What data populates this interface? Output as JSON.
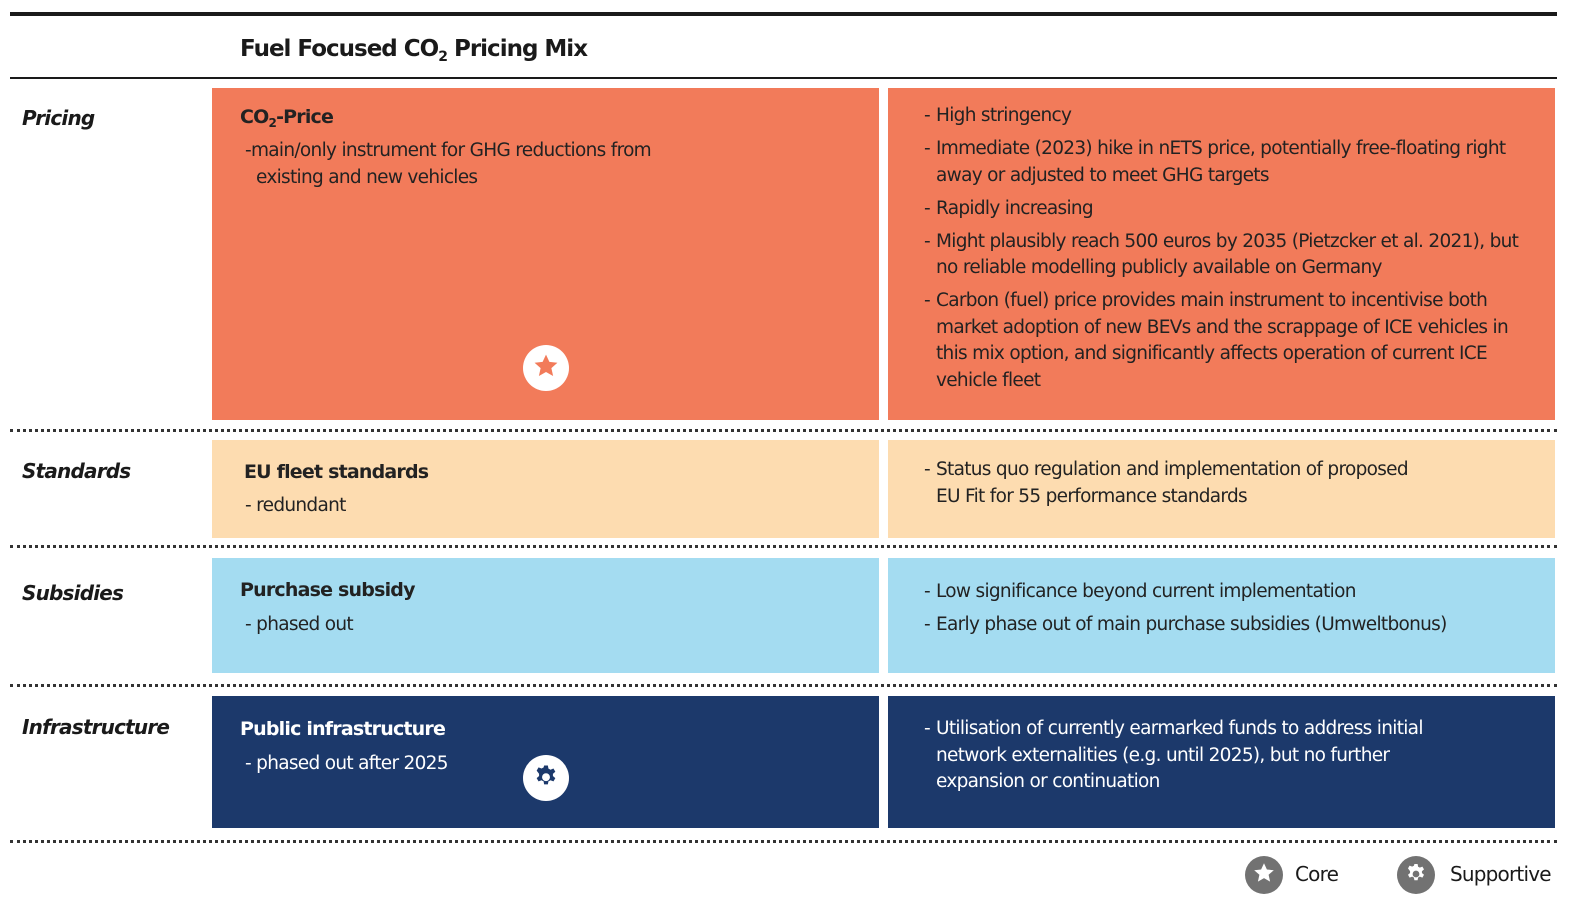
{
  "title": {
    "prefix": "Fuel Focused CO",
    "sub": "2",
    "suffix": " Pricing Mix"
  },
  "rows": [
    {
      "label": "Pricing",
      "instrument": {
        "title_prefix": "CO",
        "title_sub": "2",
        "title_suffix": "-Price",
        "desc": "-main/only instrument for GHG reductions from",
        "desc2": "existing and new vehicles"
      },
      "badge": "star-icon",
      "details": [
        "High stringency",
        "Immediate (2023) hike in nETS price, potentially free-floating right away or adjusted to meet GHG targets",
        "Rapidly increasing",
        "Might plausibly reach 500 euros by 2035 (Pietzcker et al. 2021), but no reliable modelling publicly available on Germany",
        "Carbon (fuel) price provides main instrument to incentivise both market adoption of new BEVs and the scrappage of ICE vehicles in this mix option, and significantly affects operation of current ICE vehicle fleet"
      ],
      "color": "#f27b5a"
    },
    {
      "label": "Standards",
      "instrument": {
        "title": "EU fleet standards",
        "desc": "- redundant"
      },
      "details": [
        "Status quo regulation and implementation of proposed EU Fit for 55 performance standards"
      ],
      "color": "#fddcb0"
    },
    {
      "label": "Subsidies",
      "instrument": {
        "title": "Purchase subsidy",
        "desc": "- phased out"
      },
      "details": [
        "Low significance beyond current implementation",
        "Early phase out of main purchase subsidies (Umweltbonus)"
      ],
      "color": "#a4dcf1"
    },
    {
      "label": "Infrastructure",
      "instrument": {
        "title": "Public infrastructure",
        "desc": "- phased out after 2025"
      },
      "badge": "gear-icon",
      "details": [
        "Utilisation of currently earmarked funds to address initial network externalities (e.g. until 2025), but no further expansion or continuation"
      ],
      "color": "#1c396b"
    }
  ],
  "legend": [
    {
      "icon": "star-icon",
      "label": "Core"
    },
    {
      "icon": "gear-icon",
      "label": "Supportive"
    }
  ]
}
